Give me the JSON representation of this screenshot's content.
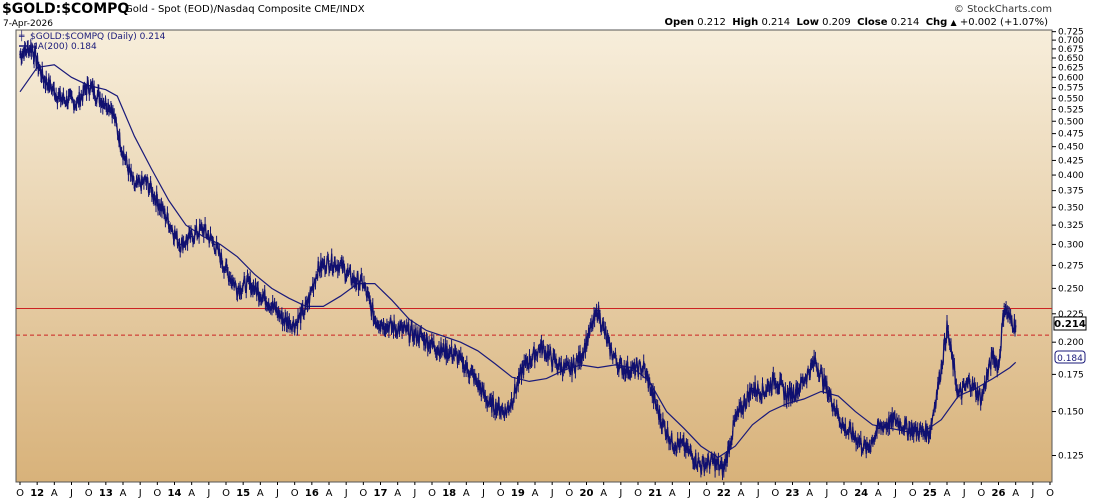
{
  "header": {
    "symbol": "$GOLD:$COMPQ",
    "description": "Gold - Spot (EOD)/Nasdaq Composite CME/INDX",
    "date": "7-Apr-2026",
    "watermark": "© StockCharts.com",
    "open_label": "Open",
    "open": "0.212",
    "high_label": "High",
    "high": "0.214",
    "low_label": "Low",
    "low": "0.209",
    "close_label": "Close",
    "close": "0.214",
    "chg_label": "Chg",
    "chg": "+0.002 (+1.07%)",
    "chg_arrow": "▲"
  },
  "colors": {
    "price": "#101070",
    "ma": "#1a1a7a",
    "resistance": "#cc2222",
    "bg_top": "#f7eedb",
    "bg_bottom": "#d8b27a"
  },
  "chart_data": {
    "type": "line",
    "title": "$GOLD:$COMPQ",
    "y_scale": "log",
    "ylim": [
      0.112,
      0.73
    ],
    "y_ticks": [
      0.725,
      0.7,
      0.675,
      0.65,
      0.625,
      0.6,
      0.575,
      0.55,
      0.525,
      0.5,
      0.475,
      0.45,
      0.425,
      0.4,
      0.375,
      0.35,
      0.325,
      0.3,
      0.275,
      0.25,
      0.225,
      0.2,
      0.175,
      0.15,
      0.125
    ],
    "x_axis_labels": [
      "O",
      "12",
      "A",
      "J",
      "O",
      "13",
      "A",
      "J",
      "O",
      "14",
      "A",
      "J",
      "O",
      "15",
      "A",
      "J",
      "O",
      "16",
      "A",
      "J",
      "O",
      "17",
      "A",
      "J",
      "O",
      "18",
      "A",
      "J",
      "O",
      "19",
      "A",
      "J",
      "O",
      "20",
      "A",
      "J",
      "O",
      "21",
      "A",
      "J",
      "O",
      "22",
      "A",
      "J",
      "O",
      "23",
      "A",
      "J",
      "O",
      "24",
      "A",
      "J",
      "O",
      "25",
      "A",
      "J",
      "O",
      "26",
      "A",
      "J",
      "O"
    ],
    "x_axis_start": "2011-10",
    "grid": false,
    "legend": {
      "position": "top-left",
      "items": [
        {
          "name": "$GOLD:$COMPQ (Daily) 0.214",
          "style": "price-bar"
        },
        {
          "name": "MA(200) 0.184",
          "style": "line"
        }
      ]
    },
    "last_value_label": "0.214",
    "ma_value_label": "0.184",
    "hlines": [
      {
        "value": 0.23,
        "style": "solid",
        "color": "#cc2222"
      },
      {
        "value": 0.206,
        "style": "dashed",
        "color": "#cc2222"
      }
    ],
    "series": [
      {
        "name": "$GOLD:$COMPQ (Daily) 0.214",
        "x": [
          "2011-10",
          "2011-12",
          "2012-02",
          "2012-05",
          "2012-08",
          "2012-10",
          "2012-12",
          "2013-02",
          "2013-04",
          "2013-06",
          "2013-08",
          "2013-10",
          "2013-12",
          "2014-02",
          "2014-04",
          "2014-06",
          "2014-08",
          "2014-10",
          "2014-12",
          "2015-02",
          "2015-05",
          "2015-08",
          "2015-10",
          "2015-12",
          "2016-02",
          "2016-04",
          "2016-06",
          "2016-08",
          "2016-10",
          "2016-12",
          "2017-02",
          "2017-05",
          "2017-08",
          "2017-11",
          "2018-02",
          "2018-05",
          "2018-08",
          "2018-11",
          "2018-12",
          "2019-02",
          "2019-05",
          "2019-08",
          "2019-10",
          "2019-12",
          "2020-03",
          "2020-05",
          "2020-07",
          "2020-09",
          "2020-11",
          "2021-02",
          "2021-04",
          "2021-06",
          "2021-09",
          "2021-11",
          "2022-01",
          "2022-03",
          "2022-06",
          "2022-08",
          "2022-10",
          "2022-12",
          "2023-02",
          "2023-05",
          "2023-07",
          "2023-10",
          "2023-12",
          "2024-02",
          "2024-04",
          "2024-07",
          "2024-09",
          "2024-11",
          "2025-01",
          "2025-03",
          "2025-04",
          "2025-06",
          "2025-08",
          "2025-10",
          "2025-12",
          "2026-01",
          "2026-02",
          "2026-03",
          "2026-04"
        ],
        "y": [
          0.66,
          0.68,
          0.6,
          0.55,
          0.54,
          0.58,
          0.55,
          0.53,
          0.44,
          0.38,
          0.39,
          0.36,
          0.33,
          0.3,
          0.31,
          0.32,
          0.3,
          0.27,
          0.25,
          0.255,
          0.24,
          0.22,
          0.215,
          0.23,
          0.27,
          0.28,
          0.275,
          0.26,
          0.255,
          0.22,
          0.215,
          0.21,
          0.205,
          0.195,
          0.19,
          0.175,
          0.155,
          0.15,
          0.158,
          0.18,
          0.196,
          0.182,
          0.178,
          0.188,
          0.228,
          0.195,
          0.18,
          0.178,
          0.18,
          0.145,
          0.132,
          0.13,
          0.12,
          0.122,
          0.118,
          0.145,
          0.165,
          0.163,
          0.172,
          0.16,
          0.165,
          0.185,
          0.165,
          0.14,
          0.135,
          0.128,
          0.14,
          0.145,
          0.14,
          0.138,
          0.138,
          0.18,
          0.212,
          0.16,
          0.17,
          0.158,
          0.19,
          0.18,
          0.232,
          0.22,
          0.214
        ]
      },
      {
        "name": "MA(200) 0.184",
        "x": [
          "2011-10",
          "2012-01",
          "2012-04",
          "2012-07",
          "2012-10",
          "2013-01",
          "2013-03",
          "2013-06",
          "2013-09",
          "2013-12",
          "2014-03",
          "2014-06",
          "2014-09",
          "2014-12",
          "2015-03",
          "2015-06",
          "2015-09",
          "2015-12",
          "2016-03",
          "2016-06",
          "2016-09",
          "2016-12",
          "2017-03",
          "2017-06",
          "2017-09",
          "2017-12",
          "2018-03",
          "2018-06",
          "2018-09",
          "2018-12",
          "2019-03",
          "2019-06",
          "2019-09",
          "2019-12",
          "2020-03",
          "2020-06",
          "2020-09",
          "2020-12",
          "2021-03",
          "2021-06",
          "2021-09",
          "2021-12",
          "2022-03",
          "2022-06",
          "2022-09",
          "2022-12",
          "2023-03",
          "2023-06",
          "2023-09",
          "2023-12",
          "2024-03",
          "2024-06",
          "2024-09",
          "2024-12",
          "2025-03",
          "2025-06",
          "2025-09",
          "2025-12",
          "2026-03",
          "2026-04"
        ],
        "y": [
          0.565,
          0.625,
          0.632,
          0.6,
          0.58,
          0.57,
          0.555,
          0.47,
          0.41,
          0.36,
          0.325,
          0.31,
          0.3,
          0.285,
          0.265,
          0.25,
          0.24,
          0.232,
          0.232,
          0.242,
          0.255,
          0.255,
          0.238,
          0.22,
          0.21,
          0.205,
          0.2,
          0.193,
          0.183,
          0.173,
          0.17,
          0.172,
          0.178,
          0.182,
          0.18,
          0.182,
          0.18,
          0.17,
          0.15,
          0.14,
          0.13,
          0.124,
          0.13,
          0.142,
          0.15,
          0.155,
          0.158,
          0.163,
          0.16,
          0.15,
          0.142,
          0.14,
          0.138,
          0.138,
          0.145,
          0.16,
          0.165,
          0.172,
          0.18,
          0.184
        ]
      }
    ]
  }
}
